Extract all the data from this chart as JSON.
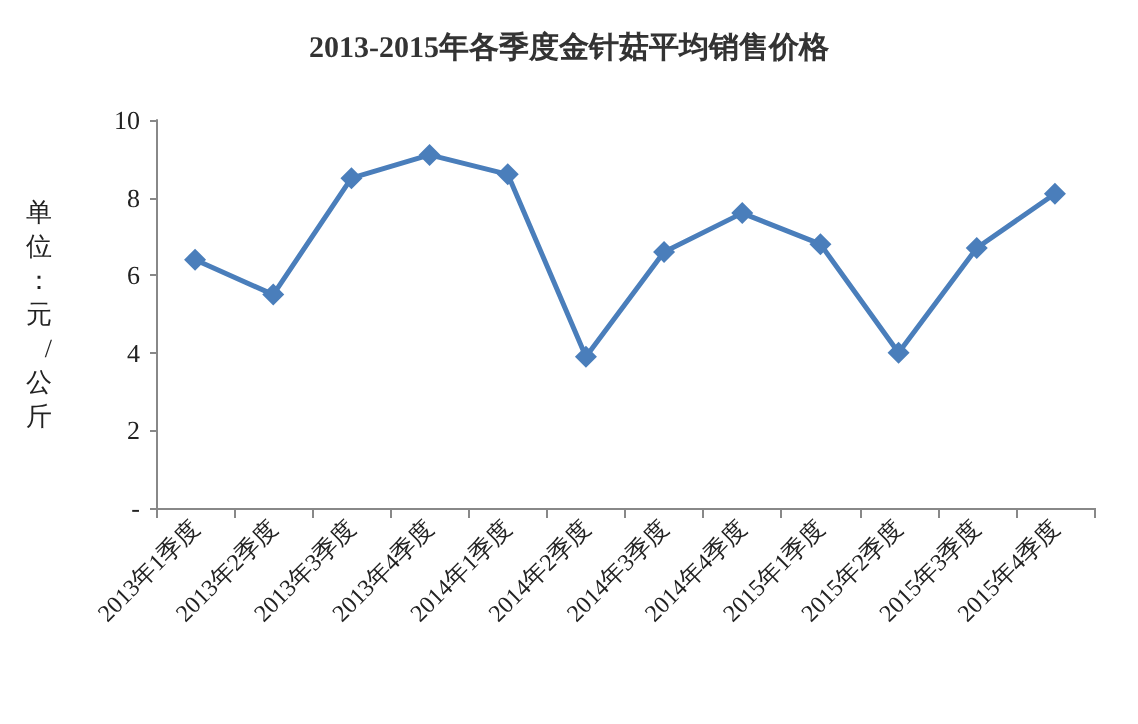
{
  "chart_data": {
    "type": "line",
    "title": "2013-2015年各季度金针菇平均销售价格",
    "ylabel": "单位：元/公斤",
    "categories": [
      "2013年1季度",
      "2013年2季度",
      "2013年3季度",
      "2013年4季度",
      "2014年1季度",
      "2014年2季度",
      "2014年3季度",
      "2014年4季度",
      "2015年1季度",
      "2015年2季度",
      "2015年3季度",
      "2015年4季度"
    ],
    "series": [
      {
        "color": "#4a7ebb",
        "values": [
          6.4,
          5.5,
          8.5,
          9.1,
          8.6,
          3.9,
          6.6,
          7.6,
          6.8,
          4.0,
          6.7,
          8.1
        ]
      }
    ],
    "ylim": [
      0,
      10
    ],
    "yticks": [
      {
        "value": 0,
        "label": "-"
      },
      2,
      4,
      6,
      8,
      10
    ],
    "grid": false,
    "marker": "diamond",
    "line_style": "solid"
  }
}
